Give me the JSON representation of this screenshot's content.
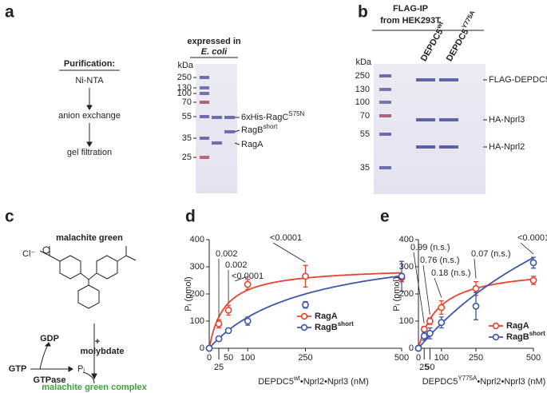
{
  "panel_labels": [
    "a",
    "b",
    "c",
    "d",
    "e"
  ],
  "panel_a": {
    "heading": "Purification:",
    "steps": [
      "Ni-NTA",
      "anion exchange",
      "gel filtration"
    ],
    "gel_title": [
      "expressed in",
      "E. coli"
    ],
    "kda": "kDa",
    "markers": [
      "250",
      "130",
      "100",
      "70",
      "55",
      "35",
      "25"
    ],
    "bands": [
      {
        "text": "6xHis-RagC",
        "sup": "S75N"
      },
      {
        "text": "RagB",
        "sup": "short"
      },
      {
        "text": "RagA"
      }
    ]
  },
  "panel_b": {
    "title": [
      "FLAG-IP",
      "from HEK293T"
    ],
    "lanes": [
      {
        "text": "DEPDC5",
        "sup": "wt"
      },
      {
        "text": "DEPDC5",
        "sup": "Y775A"
      }
    ],
    "kda": "kDa",
    "markers": [
      "250",
      "130",
      "100",
      "70",
      "55",
      "35"
    ],
    "bands": [
      "FLAG-DEPDC5",
      "HA-Nprl3",
      "HA-Nprl2"
    ]
  },
  "panel_c": {
    "title": "malachite green",
    "counterion": "Cl⁻",
    "plus": "+",
    "reagent": "molybdate",
    "gdp": "GDP",
    "gtp": "GTP",
    "enzyme": "GTPase",
    "pi": "Pᵢ",
    "product": "malachite green complex"
  },
  "chart_data": [
    {
      "type": "line",
      "x_label": {
        "text": "DEPDC5",
        "sup": "wt",
        "rest": "•Nprl2•Nprl3 (nM)"
      },
      "y_label": "Pᵢ (pmol)",
      "xlim": [
        0,
        500
      ],
      "ylim": [
        0,
        400
      ],
      "xticks": [
        0,
        25,
        50,
        100,
        250,
        500
      ],
      "yticks": [
        0,
        100,
        200,
        300,
        400
      ],
      "x": [
        0,
        25,
        50,
        100,
        250,
        500
      ],
      "series": [
        {
          "name": "RagA",
          "color": "#e8412c",
          "values": [
            0,
            90,
            140,
            235,
            265,
            260
          ],
          "errors": [
            0,
            15,
            18,
            18,
            40,
            15
          ],
          "fit": {
            "vmax": 300,
            "km": 40
          }
        },
        {
          "name": "RagB",
          "name_sup": "short",
          "color": "#3d56a6",
          "values": [
            0,
            35,
            65,
            100,
            160,
            265
          ],
          "errors": [
            0,
            8,
            8,
            15,
            12,
            55
          ],
          "fit": {
            "vmax": 400,
            "km": 250
          }
        }
      ],
      "annotations": [
        {
          "x": 25,
          "text": "0.002"
        },
        {
          "x": 50,
          "text": "0.002"
        },
        {
          "x": 100,
          "text": "<0.0001"
        },
        {
          "x": 250,
          "text": "<0.0001"
        }
      ]
    },
    {
      "type": "line",
      "x_label": {
        "text": "DEPDC5",
        "sup": "Y775A",
        "rest": "•Nprl2•Nprl3 (nM)"
      },
      "y_label": "Pᵢ (pmol)",
      "xlim": [
        0,
        500
      ],
      "ylim": [
        0,
        400
      ],
      "xticks": [
        0,
        25,
        50,
        100,
        250,
        500
      ],
      "yticks": [
        0,
        100,
        200,
        300,
        400
      ],
      "x": [
        0,
        25,
        50,
        100,
        250,
        500
      ],
      "series": [
        {
          "name": "RagA",
          "color": "#e8412c",
          "values": [
            0,
            70,
            100,
            150,
            220,
            250
          ],
          "errors": [
            0,
            10,
            12,
            25,
            25,
            15
          ],
          "fit": {
            "vmax": 300,
            "km": 90
          }
        },
        {
          "name": "RagB",
          "name_sup": "short",
          "color": "#3d56a6",
          "values": [
            0,
            45,
            55,
            95,
            155,
            315
          ],
          "errors": [
            0,
            15,
            20,
            20,
            50,
            20
          ],
          "fit": {
            "vmax": 1000,
            "km": 1000
          }
        }
      ],
      "annotations": [
        {
          "x": 25,
          "text": "0.99 (n.s.)"
        },
        {
          "x": 50,
          "text": "0.76 (n.s.)"
        },
        {
          "x": 100,
          "text": "0.18 (n.s.)"
        },
        {
          "x": 250,
          "text": "0.07 (n.s.)"
        },
        {
          "x": 500,
          "text": "<0.0001"
        }
      ]
    }
  ]
}
